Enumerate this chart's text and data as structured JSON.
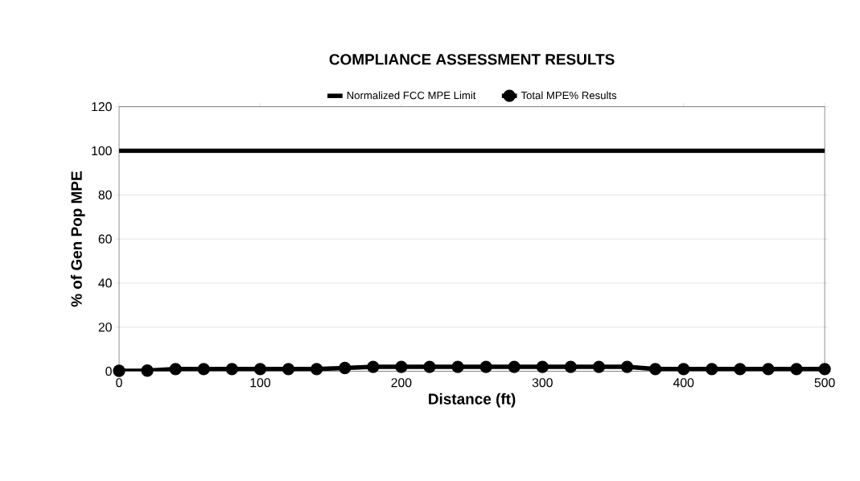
{
  "chart_data": {
    "type": "line",
    "title": "COMPLIANCE ASSESSMENT RESULTS",
    "xlabel": "Distance (ft)",
    "ylabel": "% of Gen Pop MPE",
    "x": [
      0,
      20,
      40,
      60,
      80,
      100,
      120,
      140,
      160,
      180,
      200,
      220,
      240,
      260,
      280,
      300,
      320,
      340,
      360,
      380,
      400,
      420,
      440,
      460,
      480,
      500
    ],
    "series": [
      {
        "name": "Normalized FCC MPE Limit",
        "color": "#000000",
        "marker": "none",
        "values": [
          100,
          100,
          100,
          100,
          100,
          100,
          100,
          100,
          100,
          100,
          100,
          100,
          100,
          100,
          100,
          100,
          100,
          100,
          100,
          100,
          100,
          100,
          100,
          100,
          100,
          100
        ]
      },
      {
        "name": "Total MPE% Results",
        "color": "#000000",
        "marker": "circle",
        "values": [
          0.2,
          0.3,
          1,
          1,
          1,
          1,
          1,
          1,
          1.5,
          2,
          2,
          2,
          2,
          2,
          2,
          2,
          2,
          2,
          2,
          1,
          1,
          1,
          1,
          1,
          1,
          1
        ]
      }
    ],
    "xlim": [
      0,
      500
    ],
    "xticks": [
      0,
      100,
      200,
      300,
      400,
      500
    ],
    "ylim": [
      0,
      120
    ],
    "yticks": [
      0,
      20,
      40,
      60,
      80,
      100,
      120
    ],
    "grid": "y",
    "legend": "top",
    "line_style": "solid"
  }
}
